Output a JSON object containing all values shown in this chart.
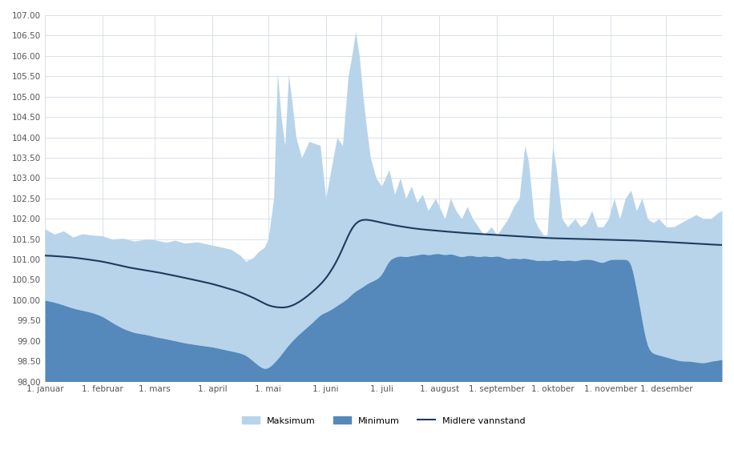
{
  "title": "",
  "xlabel": "",
  "ylabel": "",
  "ylim": [
    98.0,
    107.0
  ],
  "yticks": [
    98.0,
    98.5,
    99.0,
    99.5,
    100.0,
    100.5,
    101.0,
    101.5,
    102.0,
    102.5,
    103.0,
    103.5,
    104.0,
    104.5,
    105.0,
    105.5,
    106.0,
    106.5,
    107.0
  ],
  "months": [
    "1. januar",
    "1. februar",
    "1. mars",
    "1. april",
    "1. mai",
    "1. juni",
    "1. juli",
    "1. august",
    "1. september",
    "1. oktober",
    "1. november",
    "1. desember"
  ],
  "background_color": "#ffffff",
  "grid_color": "#d5dce6",
  "max_color": "#b8d4ea",
  "min_color": "#5588bb",
  "mean_color": "#1e3a5f",
  "legend_labels": [
    "Maksimum",
    "Minimum",
    "Midlere vannstand"
  ]
}
